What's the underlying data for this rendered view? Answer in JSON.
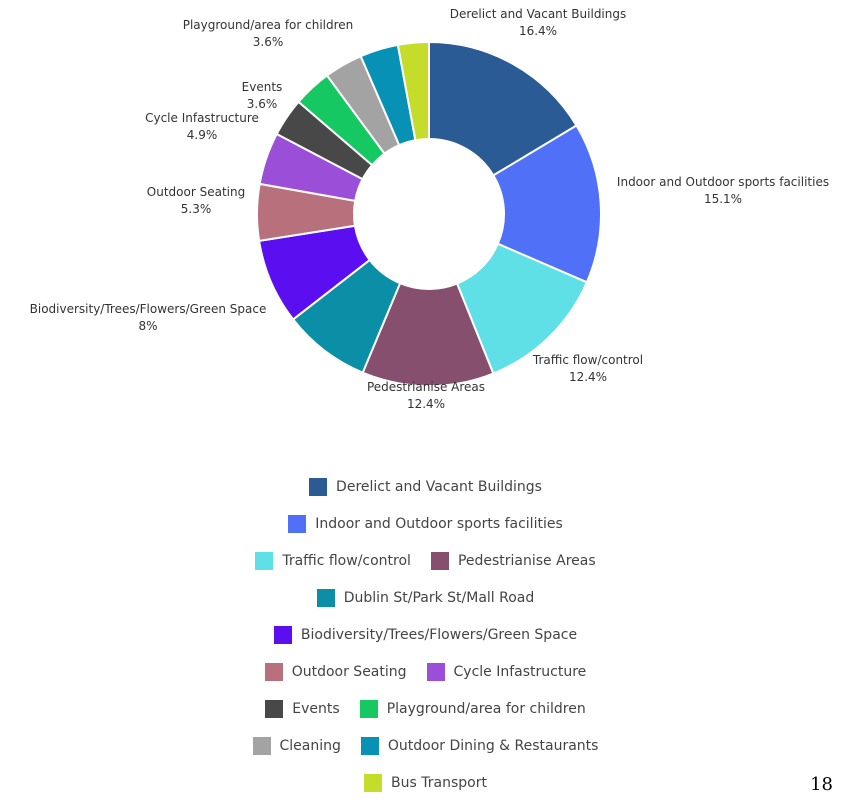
{
  "chart_data": {
    "type": "pie",
    "donut": true,
    "title": "",
    "categories": [
      "Derelict and Vacant Buildings",
      "Indoor and Outdoor sports facilities",
      "Traffic flow/control",
      "Pedestrianise Areas",
      "Dublin St/Park St/Mall Road",
      "Biodiversity/Trees/Flowers/Green Space",
      "Outdoor Seating",
      "Cycle Infastructure",
      "Events",
      "Playground/area for children",
      "Cleaning",
      "Outdoor Dining & Restaurants",
      "Bus Transport"
    ],
    "values": [
      16.4,
      15.1,
      12.4,
      12.4,
      8.2,
      8,
      5.3,
      4.9,
      3.6,
      3.6,
      3.6,
      3.6,
      2.9
    ],
    "colors": [
      "#2b5b94",
      "#5071f7",
      "#5fe0e6",
      "#874f6e",
      "#0a8fa6",
      "#5b0ff0",
      "#b8707d",
      "#9b4fd8",
      "#484848",
      "#16c861",
      "#a3a3a3",
      "#0792b5",
      "#c6dc2a"
    ],
    "slice_labels": [
      {
        "name": "Derelict and Vacant Buildings",
        "value": "16.4%"
      },
      {
        "name": "Indoor and Outdoor sports facilities",
        "value": "15.1%"
      },
      {
        "name": "Traffic flow/control",
        "value": "12.4%"
      },
      {
        "name": "Pedestrianise Areas",
        "value": "12.4%"
      },
      {
        "name": "",
        "value": ""
      },
      {
        "name": "Biodiversity/Trees/Flowers/Green Space",
        "value": "8%"
      },
      {
        "name": "Outdoor Seating",
        "value": "5.3%"
      },
      {
        "name": "Cycle Infastructure",
        "value": "4.9%"
      },
      {
        "name": "Events",
        "value": "3.6%"
      },
      {
        "name": "Playground/area for children",
        "value": "3.6%"
      },
      {
        "name": "",
        "value": ""
      },
      {
        "name": "",
        "value": ""
      },
      {
        "name": "",
        "value": ""
      }
    ],
    "legend": {
      "placement": "bottom",
      "rows": [
        [
          0
        ],
        [
          1
        ],
        [
          2,
          3
        ],
        [
          4
        ],
        [
          5
        ],
        [
          6,
          7
        ],
        [
          8,
          9
        ],
        [
          10,
          11
        ],
        [
          12
        ]
      ]
    }
  },
  "page_number": "18"
}
